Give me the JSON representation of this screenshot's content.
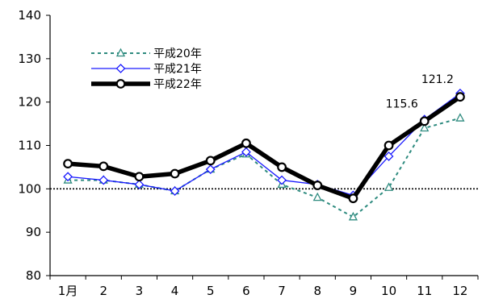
{
  "chart_data": {
    "type": "line",
    "categories": [
      "1月",
      "2",
      "3",
      "4",
      "5",
      "6",
      "7",
      "8",
      "9",
      "10",
      "11",
      "12"
    ],
    "ylim": [
      80,
      140
    ],
    "yticks": [
      "80",
      "90",
      "100",
      "110",
      "120",
      "130",
      "140"
    ],
    "reference_line": 100,
    "grid": false,
    "legend_position": "top-left",
    "series": [
      {
        "name": "平成20年",
        "color": "#2e8b7f",
        "line_style": "dotted",
        "marker": "triangle",
        "values": [
          102.0,
          102.0,
          101.0,
          99.5,
          104.5,
          108.0,
          101.0,
          98.0,
          93.5,
          100.3,
          114.0,
          116.3
        ]
      },
      {
        "name": "平成21年",
        "color": "#1a1aff",
        "line_style": "solid",
        "marker": "diamond",
        "values": [
          102.8,
          102.0,
          101.0,
          99.5,
          104.5,
          108.5,
          102.0,
          101.0,
          98.5,
          107.5,
          116.0,
          122.0
        ]
      },
      {
        "name": "平成22年",
        "color": "#000000",
        "line_style": "thick",
        "marker": "circle",
        "values": [
          105.8,
          105.2,
          102.8,
          103.5,
          106.5,
          110.5,
          105.0,
          100.8,
          97.8,
          110.0,
          115.6,
          121.2
        ]
      }
    ],
    "annotations": [
      {
        "text": "115.6",
        "category_index": 10,
        "value": 115.6
      },
      {
        "text": "121.2",
        "category_index": 11,
        "value": 121.2
      }
    ]
  }
}
